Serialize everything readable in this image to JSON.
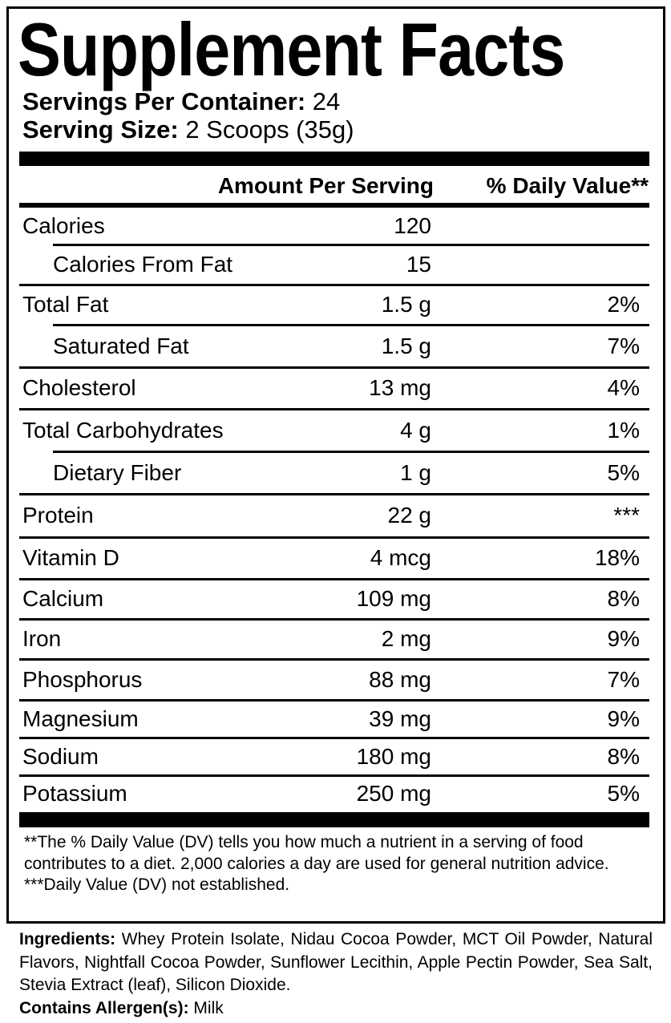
{
  "title": "Supplement Facts",
  "servings_per_container": {
    "label": "Servings Per Container:",
    "value": "24"
  },
  "serving_size": {
    "label": "Serving Size:",
    "value": "2 Scoops (35g)"
  },
  "table": {
    "header_amount": "Amount Per Serving",
    "header_dv": "% Daily Value**",
    "rows": [
      {
        "name": "Calories",
        "amount": "120",
        "dv": "",
        "indent": false
      },
      {
        "name": "Calories From Fat",
        "amount": "15",
        "dv": "",
        "indent": true
      },
      {
        "name": "Total Fat",
        "amount": "1.5 g",
        "dv": "2%",
        "indent": false
      },
      {
        "name": "Saturated Fat",
        "amount": "1.5 g",
        "dv": "7%",
        "indent": true
      },
      {
        "name": "Cholesterol",
        "amount": "13 mg",
        "dv": "4%",
        "indent": false
      },
      {
        "name": "Total Carbohydrates",
        "amount": "4 g",
        "dv": "1%",
        "indent": false
      },
      {
        "name": "Dietary Fiber",
        "amount": "1 g",
        "dv": "5%",
        "indent": true
      },
      {
        "name": "Protein",
        "amount": "22 g",
        "dv": "***",
        "indent": false
      },
      {
        "name": "Vitamin D",
        "amount": "4 mcg",
        "dv": "18%",
        "indent": false
      },
      {
        "name": "Calcium",
        "amount": "109 mg",
        "dv": "8%",
        "indent": false
      },
      {
        "name": "Iron",
        "amount": "2 mg",
        "dv": "9%",
        "indent": false
      },
      {
        "name": "Phosphorus",
        "amount": "88 mg",
        "dv": "7%",
        "indent": false
      },
      {
        "name": "Magnesium",
        "amount": "39 mg",
        "dv": "9%",
        "indent": false
      },
      {
        "name": "Sodium",
        "amount": "180 mg",
        "dv": "8%",
        "indent": false
      },
      {
        "name": "Potassium",
        "amount": "250 mg",
        "dv": "5%",
        "indent": false
      }
    ]
  },
  "footnotes": {
    "dv_note": "**The % Daily Value (DV) tells you how much a nutrient in a serving of food contributes to a diet. 2,000 calories a day are used for general nutrition advice.",
    "not_established": "***Daily Value (DV) not established."
  },
  "ingredients": {
    "label": "Ingredients:",
    "text": "Whey Protein Isolate, Nidau Cocoa Powder, MCT Oil Powder, Natural Flavors, Nightfall Cocoa Powder, Sunflower Lecithin, Apple Pectin Powder, Sea Salt, Stevia Extract (leaf), Silicon Dioxide."
  },
  "allergens": {
    "label": "Contains Allergen(s):",
    "text": "Milk"
  }
}
